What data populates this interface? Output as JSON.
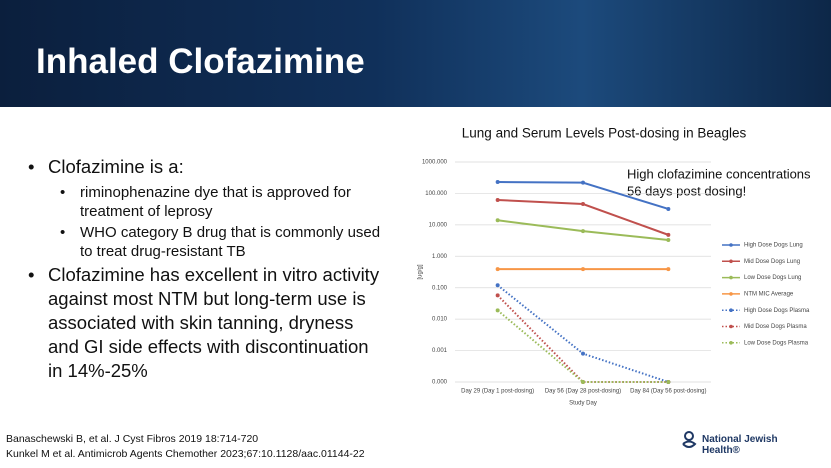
{
  "header": {
    "title": "Inhaled Clofazimine"
  },
  "bullets": [
    {
      "text": "Clofazimine is a:",
      "sub": [
        "riminophenazine dye that is approved for treatment of leprosy",
        "WHO category B drug that is commonly used to treat drug-resistant TB"
      ]
    },
    {
      "text": "Clofazimine has excellent in vitro activity against most NTM but long-term use is associated with skin tanning, dryness and GI side effects with discontinuation in 14%-25%",
      "sub": []
    }
  ],
  "references": [
    "Banaschewski B, et al. J Cyst Fibros 2019 18:714-720",
    "Kunkel M et al. Antimicrob Agents Chemother 2023;67:10.1128/aac.01144-22"
  ],
  "logo": [
    "National Jewish",
    "Health®"
  ],
  "chart_data": {
    "type": "line",
    "title": "Lung and Serum Levels Post-dosing in Beagles",
    "annotation": [
      "High clofazimine concentrations",
      " 56 days post dosing!"
    ],
    "x_label": "Study Day",
    "y_label": "[ug/g]",
    "categories": [
      "Day 29 (Day 1 post-dosing)",
      "Day 56 (Day 28 post-dosing)",
      "Day 84 (Day 56 post-dosing)"
    ],
    "log_scale": true,
    "grid": true,
    "ylim": [
      0.0001,
      1000
    ],
    "yticks": [
      {
        "value": 1000,
        "label": "1000.000"
      },
      {
        "value": 100,
        "label": "100.000"
      },
      {
        "value": 10,
        "label": "10.000"
      },
      {
        "value": 1,
        "label": "1.000"
      },
      {
        "value": 0.1,
        "label": "0.100"
      },
      {
        "value": 0.01,
        "label": "0.010"
      },
      {
        "value": 0.001,
        "label": "0.001"
      },
      {
        "value": 0.0001,
        "label": "0.000"
      }
    ],
    "series": [
      {
        "name": "High Dose Dogs Lung",
        "color": "#4472c4",
        "style": "solid",
        "values": [
          230,
          220,
          32
        ]
      },
      {
        "name": "Mid Dose Dogs Lung",
        "color": "#c0504d",
        "style": "solid",
        "values": [
          62,
          46,
          4.8
        ]
      },
      {
        "name": "Low Dose Dogs Lung",
        "color": "#9bbb59",
        "style": "solid",
        "values": [
          14,
          6.3,
          3.3
        ]
      },
      {
        "name": "NTM MIC Average",
        "color": "#f79646",
        "style": "solid",
        "values": [
          0.39,
          0.39,
          0.39
        ]
      },
      {
        "name": "High Dose Dogs Plasma",
        "color": "#4472c4",
        "style": "dotted",
        "values": [
          0.12,
          0.0008,
          0.0001
        ]
      },
      {
        "name": "Mid Dose Dogs Plasma",
        "color": "#c0504d",
        "style": "dotted",
        "values": [
          0.057,
          0.0001,
          0.0001
        ]
      },
      {
        "name": "Low Dose Dogs Plasma",
        "color": "#9bbb59",
        "style": "dotted",
        "values": [
          0.019,
          0.0001,
          0.0001
        ]
      }
    ]
  }
}
